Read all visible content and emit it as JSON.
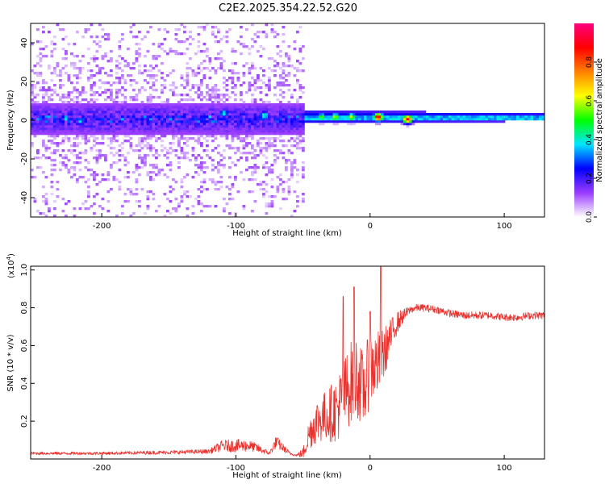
{
  "title": "C2E2.2025.354.22.52.G20",
  "colors": {
    "signal": "#e8322e",
    "axis": "#000000",
    "background": "#ffffff"
  },
  "chart_data": [
    {
      "type": "heatmap",
      "title": "C2E2.2025.354.22.52.G20",
      "xlabel": "Height of straight line (km)",
      "ylabel": "Frequency (Hz)",
      "xlim": [
        -253,
        130
      ],
      "ylim": [
        -50,
        50
      ],
      "xticks": [
        -200,
        -100,
        0,
        100
      ],
      "yticks": [
        -40,
        -20,
        0,
        20,
        40
      ],
      "xtick_labels": [
        "-200",
        "-100",
        "0",
        "100"
      ],
      "ytick_labels": [
        "-40",
        "-20",
        "0",
        "20",
        "40"
      ],
      "colorbar": {
        "label": "Normalized spectral amplitude",
        "range": [
          0,
          1
        ],
        "ticks": [
          0.0,
          0.2,
          0.4,
          0.6,
          0.8
        ],
        "tick_labels": [
          "0.0",
          "0.2",
          "0.4",
          "0.6",
          "0.8"
        ],
        "colormap": [
          "#ffffff",
          "#9a3cff",
          "#0000ff",
          "#00e5ff",
          "#00ff00",
          "#ffff00",
          "#ff8000",
          "#ff0000",
          "#ff0080"
        ]
      },
      "features": {
        "noise_region_x": [
          -253,
          -50
        ],
        "noise_band_halfwidth_hz": 8,
        "narrow_band_center_hz": 1,
        "narrow_band_x": [
          -50,
          130
        ],
        "hot_spots": [
          {
            "x": 5,
            "y": 1,
            "amplitude": 0.95
          },
          {
            "x": 27,
            "y": 0,
            "amplitude": 0.9
          },
          {
            "x": -37,
            "y": 1,
            "amplitude": 0.55
          },
          {
            "x": -27,
            "y": 1,
            "amplitude": 0.6
          },
          {
            "x": -15,
            "y": 1,
            "amplitude": 0.6
          },
          {
            "x": -80,
            "y": 2,
            "amplitude": 0.45
          },
          {
            "x": -110,
            "y": 3,
            "amplitude": 0.4
          }
        ]
      }
    },
    {
      "type": "line",
      "xlabel": "Height of straight line (km)",
      "ylabel": "SNR (10 * v/v)",
      "exponent_label": "(x10",
      "exponent_value": "4",
      "exponent_close": ")",
      "xlim": [
        -253,
        130
      ],
      "ylim": [
        0,
        1.02
      ],
      "xticks": [
        -200,
        -100,
        0,
        100
      ],
      "yticks": [
        0.2,
        0.4,
        0.6,
        0.8,
        1.0
      ],
      "xtick_labels": [
        "-200",
        "-100",
        "0",
        "100"
      ],
      "ytick_labels": [
        "0.2",
        "0.4",
        "0.6",
        "0.8",
        "1.0"
      ],
      "series": [
        {
          "name": "SNR",
          "color": "#e8322e",
          "x": [
            -253,
            -200,
            -150,
            -120,
            -110,
            -100,
            -90,
            -85,
            -75,
            -70,
            -60,
            -55,
            -50,
            -45,
            -40,
            -35,
            -30,
            -25,
            -20,
            -15,
            -10,
            -5,
            0,
            5,
            10,
            15,
            20,
            25,
            30,
            35,
            40,
            50,
            60,
            70,
            80,
            90,
            100,
            110,
            120,
            130
          ],
          "mean": [
            0.03,
            0.03,
            0.035,
            0.04,
            0.07,
            0.07,
            0.07,
            0.06,
            0.03,
            0.09,
            0.03,
            0.02,
            0.03,
            0.14,
            0.2,
            0.22,
            0.24,
            0.26,
            0.32,
            0.4,
            0.44,
            0.36,
            0.48,
            0.5,
            0.55,
            0.64,
            0.72,
            0.76,
            0.79,
            0.8,
            0.8,
            0.79,
            0.77,
            0.76,
            0.76,
            0.76,
            0.75,
            0.75,
            0.76,
            0.76
          ],
          "noise": [
            0.008,
            0.008,
            0.01,
            0.012,
            0.03,
            0.035,
            0.03,
            0.025,
            0.01,
            0.035,
            0.01,
            0.005,
            0.03,
            0.09,
            0.12,
            0.13,
            0.15,
            0.17,
            0.2,
            0.22,
            0.22,
            0.2,
            0.2,
            0.18,
            0.14,
            0.1,
            0.06,
            0.035,
            0.02,
            0.02,
            0.02,
            0.02,
            0.02,
            0.02,
            0.02,
            0.02,
            0.02,
            0.02,
            0.02,
            0.02
          ],
          "peaks": [
            {
              "x": -20,
              "y": 0.86
            },
            {
              "x": -12,
              "y": 0.91
            },
            {
              "x": 0,
              "y": 0.78
            },
            {
              "x": 8,
              "y": 1.02
            }
          ]
        }
      ]
    }
  ]
}
